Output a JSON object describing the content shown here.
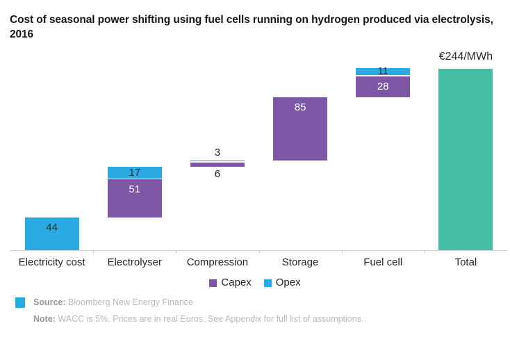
{
  "title_lines": [
    "Cost of seasonal power shifting using fuel cells running on hydrogen produced via electrolysis,",
    "2016"
  ],
  "colors": {
    "capex": "#7d57a6",
    "opex": "#29abe2",
    "total": "#43bda3",
    "label_on_capex": "#ffffff",
    "label_on_opex": "#20303f",
    "label_outside": "#222222",
    "footer_accent": "#29abe2"
  },
  "chart_data": {
    "type": "bar",
    "subtype": "waterfall",
    "unit": "€/MWh",
    "ylim": [
      0,
      244
    ],
    "grid": false,
    "legend_position": "bottom-center",
    "total_annotation": "€244/MWh",
    "legend": [
      {
        "label": "Capex",
        "color_key": "capex"
      },
      {
        "label": "Opex",
        "color_key": "opex"
      }
    ],
    "categories": [
      {
        "label": "Electricity cost",
        "segments": [
          {
            "kind": "opex",
            "start": 0,
            "value": 44
          }
        ]
      },
      {
        "label": "Electrolyser",
        "segments": [
          {
            "kind": "capex",
            "start": 44,
            "value": 51
          },
          {
            "kind": "opex",
            "start": 95,
            "value": 17
          }
        ]
      },
      {
        "label": "Compression",
        "segments": [
          {
            "kind": "capex",
            "start": 112,
            "value": 6
          },
          {
            "kind": "opex",
            "start": 118,
            "value": 3
          }
        ]
      },
      {
        "label": "Storage",
        "segments": [
          {
            "kind": "capex",
            "start": 121,
            "value": 85
          }
        ]
      },
      {
        "label": "Fuel cell",
        "segments": [
          {
            "kind": "capex",
            "start": 206,
            "value": 28
          },
          {
            "kind": "opex",
            "start": 234,
            "value": 11
          }
        ]
      },
      {
        "label": "Total",
        "segments": [
          {
            "kind": "total",
            "start": 0,
            "value": 244
          }
        ]
      }
    ]
  },
  "footer": {
    "source_label": "Source:",
    "source_value": "Bloomberg New Energy Finance",
    "note_label": "Note:",
    "note_value": "WACC is 5%. Prices are in real Euros. See Appendix for full list of assumptions."
  }
}
